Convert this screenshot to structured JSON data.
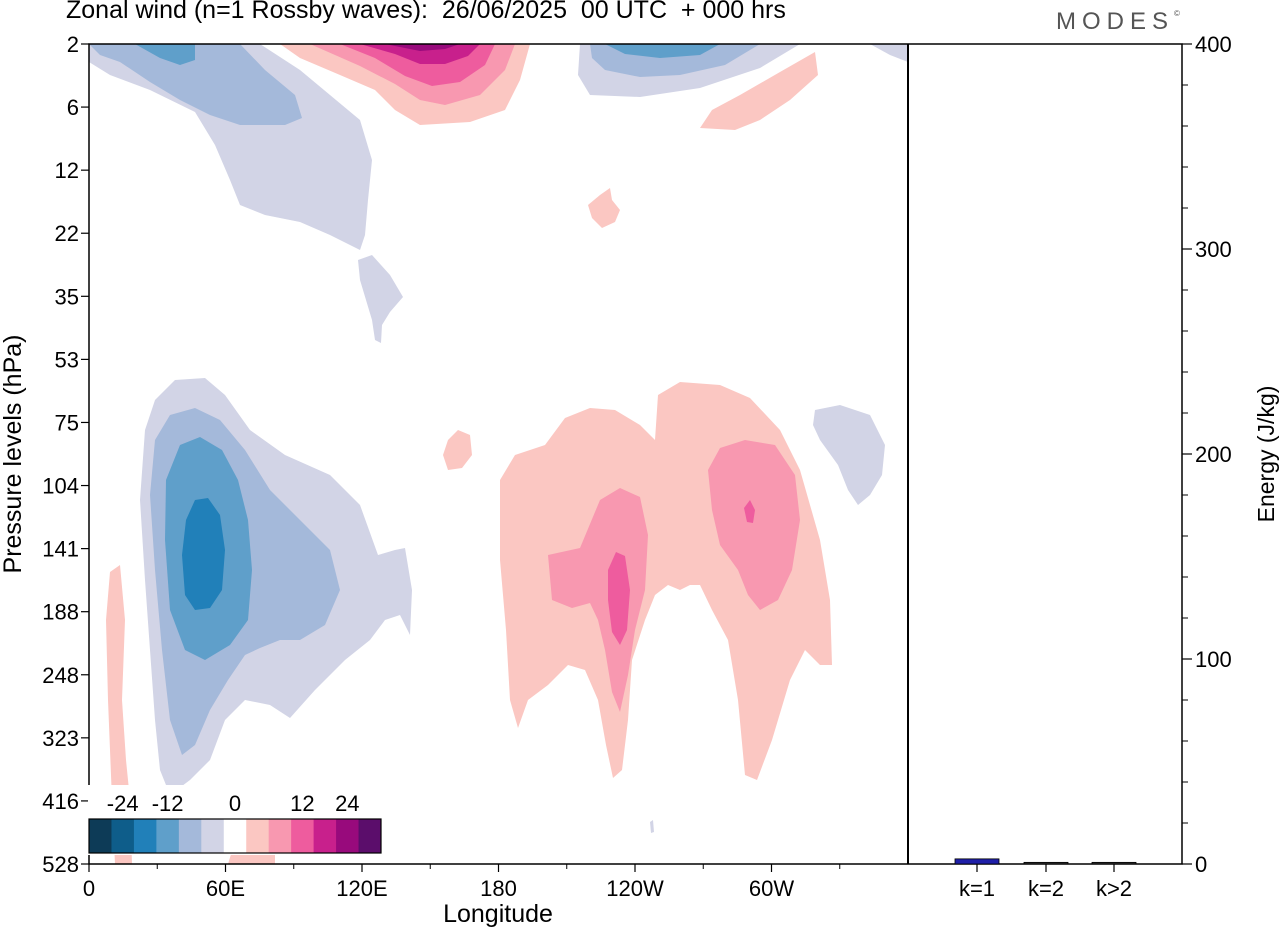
{
  "title": "Zonal wind (n=1 Rossby waves):  26/06/2025  00 UTC  + 000 hrs",
  "logo": "MODES",
  "chart_data": [
    {
      "type": "heatmap",
      "title": "Zonal wind (n=1 Rossby waves):  26/06/2025  00 UTC  + 000 hrs",
      "xlabel": "Longitude",
      "ylabel": "Pressure levels (hPa)",
      "x_ticks": [
        "0",
        "60E",
        "120E",
        "180",
        "120W",
        "60W"
      ],
      "y_ticks": [
        "2",
        "6",
        "12",
        "22",
        "35",
        "53",
        "75",
        "104",
        "141",
        "188",
        "248",
        "323",
        "416",
        "528"
      ],
      "colorbar": {
        "ticks": [
          "-24",
          "-12",
          "0",
          "12",
          "24"
        ],
        "levels": [
          -28,
          -24,
          -20,
          -16,
          -12,
          -8,
          -4,
          4,
          8,
          12,
          16,
          20,
          24,
          28
        ],
        "colors": [
          "#0d3b57",
          "#0e5d8a",
          "#2180b9",
          "#5f9fca",
          "#a4b9da",
          "#d2d4e6",
          "#ffffff",
          "#fbc7c2",
          "#f898b0",
          "#ee5c9e",
          "#c8208c",
          "#980a7c",
          "#5b0d6b"
        ]
      },
      "features": [
        {
          "x_lon": 48,
          "level_hPa": 141,
          "peak_value": -20,
          "sign": "negative"
        },
        {
          "x_lon": 20,
          "level_hPa": 2,
          "peak_value": -16,
          "sign": "negative"
        },
        {
          "x_lon": 260,
          "level_hPa": 2,
          "peak_value": -16,
          "sign": "negative"
        },
        {
          "x_lon": 148,
          "level_hPa": 2,
          "peak_value": 24,
          "sign": "positive"
        },
        {
          "x_lon": 232,
          "level_hPa": 160,
          "peak_value": 12,
          "sign": "positive"
        },
        {
          "x_lon": 290,
          "level_hPa": 120,
          "peak_value": 12,
          "sign": "positive"
        },
        {
          "x_lon": 345,
          "level_hPa": 95,
          "peak_value": -4,
          "sign": "negative"
        }
      ],
      "colors": {
        "negative": "#2180b9",
        "positive": "#ee5c9e"
      }
    },
    {
      "type": "bar",
      "ylabel": "Energy (J/kg)",
      "categories": [
        "k=1",
        "k=2",
        "k>2"
      ],
      "values": [
        2.5,
        0.8,
        0.8
      ],
      "ylim": [
        0,
        400
      ],
      "y_ticks": [
        "0",
        "100",
        "200",
        "300",
        "400"
      ],
      "bar_color": "#1f1fa8"
    }
  ]
}
